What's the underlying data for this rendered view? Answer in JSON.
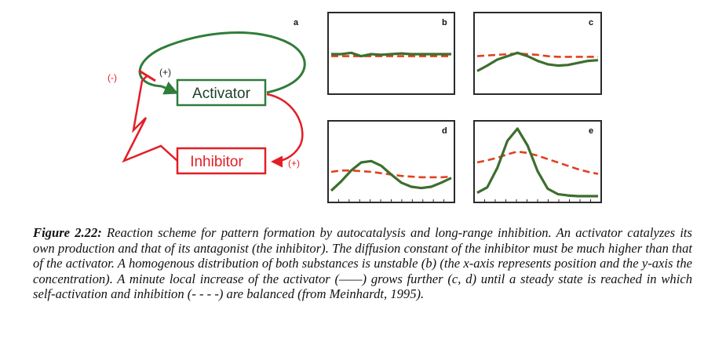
{
  "scheme": {
    "panel_letter": "a",
    "activator_label": "Activator",
    "inhibitor_label": "Inhibitor",
    "sign_self_activation": "(+)",
    "sign_activation_of_inhibitor": "(+)",
    "sign_inhibition": "(-)"
  },
  "panels": [
    {
      "letter": "b",
      "activator": [
        0.5,
        0.5,
        0.52,
        0.47,
        0.5,
        0.49,
        0.5,
        0.51,
        0.5,
        0.5,
        0.5,
        0.5,
        0.5
      ],
      "inhibitor": [
        0.47,
        0.47,
        0.47,
        0.47,
        0.47,
        0.47,
        0.47,
        0.47,
        0.47,
        0.47,
        0.47,
        0.47,
        0.47
      ]
    },
    {
      "letter": "c",
      "activator": [
        0.25,
        0.33,
        0.42,
        0.47,
        0.52,
        0.47,
        0.4,
        0.35,
        0.33,
        0.34,
        0.37,
        0.4,
        0.41
      ],
      "inhibitor": [
        0.47,
        0.48,
        0.49,
        0.5,
        0.51,
        0.5,
        0.49,
        0.47,
        0.46,
        0.46,
        0.46,
        0.46,
        0.46
      ]
    },
    {
      "letter": "d",
      "activator": [
        0.08,
        0.22,
        0.38,
        0.5,
        0.52,
        0.45,
        0.32,
        0.2,
        0.14,
        0.12,
        0.14,
        0.2,
        0.27
      ],
      "inhibitor": [
        0.36,
        0.38,
        0.38,
        0.37,
        0.36,
        0.34,
        0.32,
        0.3,
        0.29,
        0.28,
        0.28,
        0.28,
        0.29
      ],
      "x_ticks": 12
    },
    {
      "letter": "e",
      "activator": [
        0.05,
        0.13,
        0.42,
        0.82,
        1.0,
        0.75,
        0.37,
        0.11,
        0.03,
        0.01,
        0.0,
        0.0,
        0.0
      ],
      "inhibitor": [
        0.5,
        0.53,
        0.57,
        0.62,
        0.66,
        0.64,
        0.6,
        0.55,
        0.5,
        0.45,
        0.4,
        0.36,
        0.33
      ],
      "x_ticks": 12
    }
  ],
  "colors": {
    "activator_green": "#2f7d3a",
    "inhibitor_red": "#e21e26",
    "curve_green": "#3d6e2f",
    "curve_red": "#e2401f",
    "panel_border": "#2a2a2a"
  },
  "caption": {
    "label": "Figure 2.22:",
    "text": "Reaction scheme for pattern formation by autocatalysis and long-range inhibition. An activator catalyzes its own production and that of its antagonist (the inhibitor). The diffusion constant of the inhibitor must be much higher than that of the activator. A homogenous distribution of both substances is unstable (b) (the x-axis represents position and the y-axis the concentration). A minute local increase of the activator (——) grows further (c, d) until a steady state is reached in which self-activation and inhibition (- - - -) are balanced (from Meinhardt, 1995)."
  }
}
